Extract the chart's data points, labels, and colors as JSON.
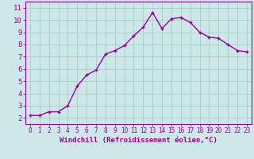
{
  "x": [
    0,
    1,
    2,
    3,
    4,
    5,
    6,
    7,
    8,
    9,
    10,
    11,
    12,
    13,
    14,
    15,
    16,
    17,
    18,
    19,
    20,
    21,
    22,
    23
  ],
  "y": [
    2.2,
    2.2,
    2.5,
    2.5,
    3.0,
    4.6,
    5.5,
    5.9,
    7.2,
    7.5,
    7.9,
    8.7,
    9.4,
    10.6,
    9.3,
    10.1,
    10.2,
    9.8,
    9.0,
    8.6,
    8.5,
    8.0,
    7.5,
    7.4
  ],
  "line_color": "#990099",
  "marker": "+",
  "marker_size": 3,
  "line_width": 1.0,
  "bg_color": "#cce8e8",
  "grid_color": "#b0d0d0",
  "xlabel": "Windchill (Refroidissement éolien,°C)",
  "xlim": [
    -0.5,
    23.5
  ],
  "ylim": [
    1.5,
    11.5
  ],
  "yticks": [
    2,
    3,
    4,
    5,
    6,
    7,
    8,
    9,
    10,
    11
  ],
  "xticks": [
    0,
    1,
    2,
    3,
    4,
    5,
    6,
    7,
    8,
    9,
    10,
    11,
    12,
    13,
    14,
    15,
    16,
    17,
    18,
    19,
    20,
    21,
    22,
    23
  ],
  "tick_color": "#990099",
  "label_color": "#990099"
}
